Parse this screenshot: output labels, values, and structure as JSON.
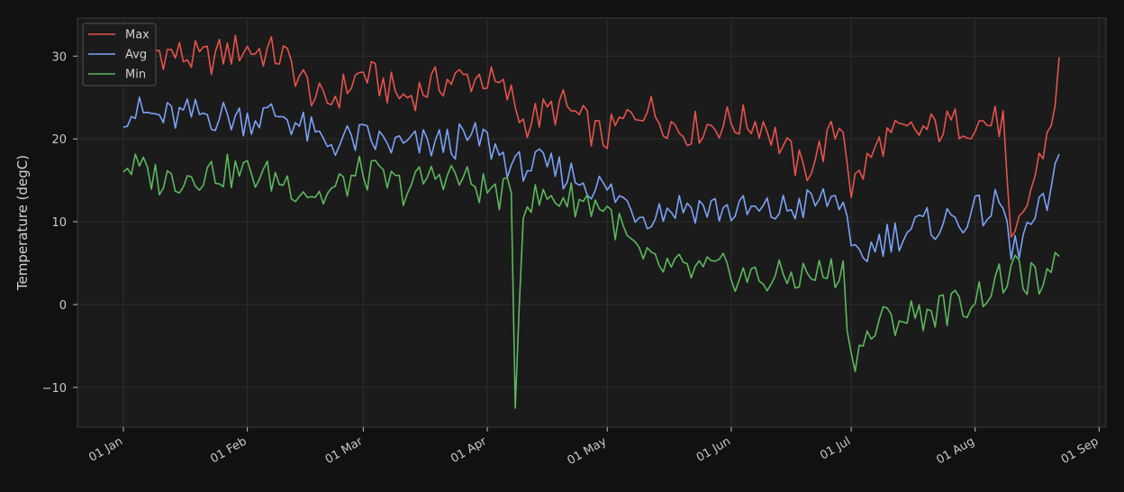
{
  "chart_data": {
    "type": "line",
    "title": "",
    "xlabel": "",
    "ylabel": "Temperature (degC)",
    "x_ticks": [
      "01 Jan",
      "01 Feb",
      "01 Mar",
      "01 Apr",
      "01 May",
      "01 Jun",
      "01 Jul",
      "01 Aug",
      "01 Sep"
    ],
    "y_ticks": [
      -10,
      0,
      10,
      20,
      30
    ],
    "xlim": [
      "2019-12-29",
      "2019-09-01"
    ],
    "ylim": [
      -14.8,
      34.6
    ],
    "grid": true,
    "legend": "top-left",
    "x_anchor_dates": [
      "2020-01-01",
      "2020-01-11",
      "2020-01-21",
      "2020-01-31",
      "2020-02-10",
      "2020-02-20",
      "2020-03-01",
      "2020-03-11",
      "2020-03-21",
      "2020-03-31",
      "2020-04-07",
      "2020-04-08",
      "2020-04-10",
      "2020-04-20",
      "2020-04-30",
      "2020-05-10",
      "2020-05-20",
      "2020-05-30",
      "2020-06-09",
      "2020-06-19",
      "2020-06-29",
      "2020-07-01",
      "2020-07-09",
      "2020-07-19",
      "2020-07-29",
      "2020-08-08",
      "2020-08-10",
      "2020-08-20",
      "2020-08-22"
    ],
    "series": [
      {
        "name": "Max",
        "color": "#e5534b",
        "values": [
          31,
          30.5,
          29.5,
          31,
          30,
          24,
          28,
          25,
          27,
          27.5,
          25,
          24,
          22,
          24,
          20,
          24,
          21,
          22,
          22,
          16,
          22,
          14,
          20,
          21,
          22,
          22,
          6,
          22,
          28.5
        ]
      },
      {
        "name": "Avg",
        "color": "#7aa2f7",
        "values": [
          23.5,
          22.5,
          23,
          22.5,
          23,
          19.5,
          20,
          19,
          19.5,
          20,
          17,
          16,
          17,
          16,
          14,
          11,
          12,
          11.5,
          11,
          12,
          13,
          5,
          8,
          9.5,
          10.5,
          12,
          6,
          13,
          17.2
        ]
      },
      {
        "name": "Min",
        "color": "#5cb85c",
        "values": [
          17,
          15,
          16,
          16,
          15,
          13,
          16,
          14,
          16,
          14,
          13,
          -12.5,
          12.5,
          13,
          12,
          5,
          4,
          4,
          3,
          3.5,
          4,
          -6.5,
          -2,
          -1,
          0,
          3,
          4,
          2,
          7.3
        ]
      }
    ]
  }
}
